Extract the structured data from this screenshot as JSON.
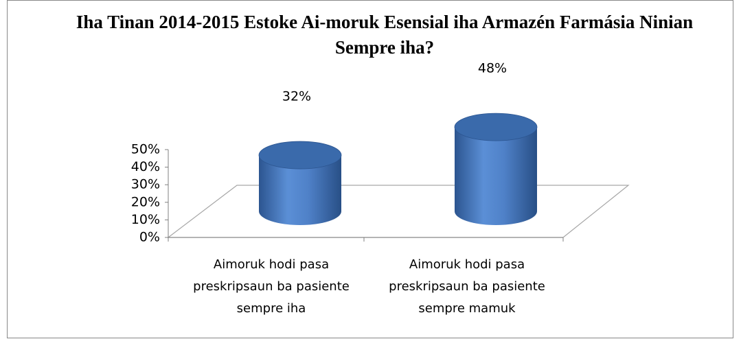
{
  "chart_data": {
    "type": "bar3d",
    "title": "Iha Tinan 2014-2015 Estoke Ai-moruk Esensial iha Armazén Farmásia Ninian Sempre iha?",
    "categories": [
      "Aimoruk hodi pasa preskripsaun ba pasiente sempre iha",
      "Aimoruk hodi pasa preskripsaun ba pasiente sempre mamuk"
    ],
    "values": [
      32,
      48
    ],
    "value_labels": [
      "32%",
      "48%"
    ],
    "color": "#4f81bd",
    "ylim": [
      0,
      50
    ],
    "yticks": [
      {
        "value": 0,
        "label": "0%"
      },
      {
        "value": 10,
        "label": "10%"
      },
      {
        "value": 20,
        "label": "20%"
      },
      {
        "value": 30,
        "label": "30%"
      },
      {
        "value": 40,
        "label": "40%"
      },
      {
        "value": 50,
        "label": "50%"
      }
    ],
    "grid": false
  }
}
